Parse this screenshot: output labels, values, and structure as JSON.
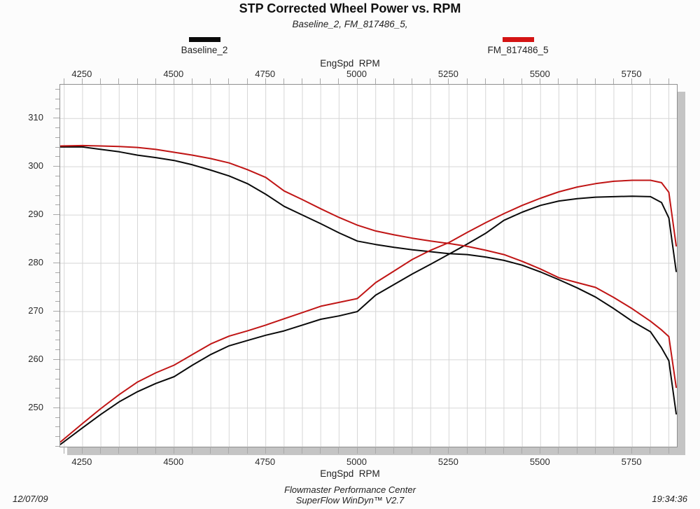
{
  "title": "STP Corrected Wheel Power vs. RPM",
  "subtitle": "Baseline_2, FM_817486_5,",
  "legend": [
    {
      "label": "Baseline_2",
      "color": "#0a0a0a"
    },
    {
      "label": "FM_817486_5",
      "color": "#d41414"
    }
  ],
  "axes": {
    "x_label_top": "EngSpd  RPM",
    "x_label_bottom": "EngSpd  RPM"
  },
  "footer": {
    "date": "12/07/09",
    "center_line1": "Flowmaster Performance Center",
    "center_line2": "SuperFlow WinDyn™ V2.7",
    "time": "19:34:36"
  },
  "colors": {
    "baseline_series": "#0a0a0a",
    "fm_series": "#c01515",
    "gridline": "#d6d6d6",
    "plot_border": "#8f8f8f",
    "shadow": "#c4c4c4"
  },
  "chart_data": {
    "type": "line",
    "title": "STP Corrected Wheel Power vs. RPM",
    "xlabel": "EngSpd RPM",
    "ylabel": "",
    "grid": true,
    "legend_position": "top",
    "xlim": [
      4189,
      5872
    ],
    "ylim": [
      242,
      317
    ],
    "x_ticks": [
      4250,
      4500,
      4750,
      5000,
      5250,
      5500,
      5750
    ],
    "x_minor_step": 50,
    "y_ticks": [
      250,
      260,
      270,
      280,
      290,
      300,
      310
    ],
    "y_minor_step": 2,
    "x": [
      4190,
      4250,
      4300,
      4350,
      4400,
      4450,
      4500,
      4550,
      4600,
      4650,
      4700,
      4750,
      4800,
      4850,
      4900,
      4950,
      5000,
      5050,
      5100,
      5150,
      5200,
      5250,
      5300,
      5350,
      5400,
      5450,
      5500,
      5550,
      5600,
      5650,
      5700,
      5750,
      5800,
      5830,
      5850,
      5870
    ],
    "series": [
      {
        "name": "Baseline_2 rising (power) curve",
        "color": "#0a0a0a",
        "values": [
          242.5,
          245.9,
          248.7,
          251.3,
          253.4,
          255.1,
          256.5,
          258.9,
          261.1,
          262.9,
          264.0,
          265.1,
          266.0,
          267.2,
          268.4,
          269.1,
          270.0,
          273.4,
          275.6,
          277.8,
          279.8,
          281.9,
          284.0,
          286.2,
          288.9,
          290.6,
          292.0,
          292.9,
          293.4,
          293.7,
          293.8,
          293.9,
          293.8,
          292.6,
          289.4,
          278.3
        ]
      },
      {
        "name": "Baseline_2 falling (torque) curve",
        "color": "#0a0a0a",
        "values": [
          304.1,
          304.1,
          303.6,
          303.1,
          302.4,
          301.9,
          301.3,
          300.4,
          299.3,
          298.1,
          296.5,
          294.3,
          291.8,
          290.0,
          288.2,
          286.3,
          284.6,
          283.9,
          283.3,
          282.8,
          282.4,
          282.0,
          281.8,
          281.3,
          280.6,
          279.6,
          278.2,
          276.6,
          274.9,
          273.0,
          270.6,
          268.0,
          265.8,
          262.5,
          259.8,
          248.8
        ]
      },
      {
        "name": "FM_817486_5 rising (power) curve",
        "color": "#c01515",
        "values": [
          243.0,
          246.8,
          249.9,
          252.8,
          255.4,
          257.3,
          258.9,
          261.1,
          263.3,
          264.9,
          266.0,
          267.2,
          268.5,
          269.8,
          271.1,
          271.9,
          272.7,
          276.0,
          278.4,
          280.8,
          282.7,
          284.3,
          286.4,
          288.4,
          290.3,
          292.0,
          293.5,
          294.8,
          295.8,
          296.5,
          297.0,
          297.2,
          297.2,
          296.7,
          294.7,
          283.6
        ]
      },
      {
        "name": "FM_817486_5 falling (torque) curve",
        "color": "#c01515",
        "values": [
          304.3,
          304.4,
          304.3,
          304.2,
          304.0,
          303.6,
          303.0,
          302.4,
          301.7,
          300.8,
          299.4,
          297.8,
          295.0,
          293.2,
          291.3,
          289.5,
          287.9,
          286.7,
          285.9,
          285.2,
          284.6,
          284.1,
          283.5,
          282.7,
          281.8,
          280.4,
          278.8,
          277.0,
          276.0,
          275.0,
          272.9,
          270.6,
          268.0,
          266.2,
          264.8,
          254.3
        ]
      }
    ]
  }
}
